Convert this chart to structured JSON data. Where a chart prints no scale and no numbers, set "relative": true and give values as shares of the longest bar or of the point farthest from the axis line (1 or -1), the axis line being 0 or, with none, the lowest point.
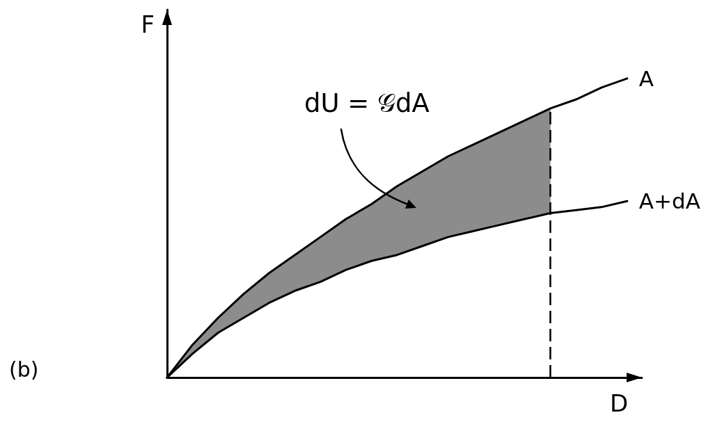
{
  "chart_data": {
    "type": "line",
    "xlabel": "D",
    "ylabel": "F",
    "annotations": [
      "dU = 𝒢dA",
      "(b)"
    ],
    "categories": [
      null,
      null,
      null,
      null,
      null,
      null,
      null,
      null,
      null,
      null,
      null,
      null,
      null,
      null,
      null,
      null,
      null,
      null,
      null
    ],
    "relative": true,
    "series": [
      {
        "name": "A",
        "color": "#000000",
        "values": [
          0,
          0.11,
          0.2,
          0.28,
          0.35,
          0.41,
          0.47,
          0.53,
          0.58,
          0.64,
          0.69,
          0.74,
          0.78,
          0.82,
          0.86,
          0.9,
          0.93,
          0.97,
          1
        ],
        "upper": [
          0,
          0.11,
          0.2,
          0.28,
          0.35,
          0.41,
          0.47,
          0.53,
          0.58,
          0.64,
          0.69,
          0.74,
          0.78,
          0.82,
          0.86,
          0.9,
          null,
          null,
          null
        ],
        "lower": [
          0,
          0.08,
          0.15,
          0.2,
          0.25,
          0.29,
          0.32,
          0.36,
          0.39,
          0.41,
          0.44,
          0.47,
          0.49,
          0.51,
          0.53,
          0.55,
          null,
          null,
          null
        ]
      },
      {
        "name": "A+dA",
        "color": "#000000",
        "values": [
          0,
          0.08,
          0.15,
          0.2,
          0.25,
          0.29,
          0.32,
          0.36,
          0.39,
          0.41,
          0.44,
          0.47,
          0.49,
          0.51,
          0.53,
          0.55,
          0.56,
          0.57,
          0.59
        ]
      }
    ]
  }
}
